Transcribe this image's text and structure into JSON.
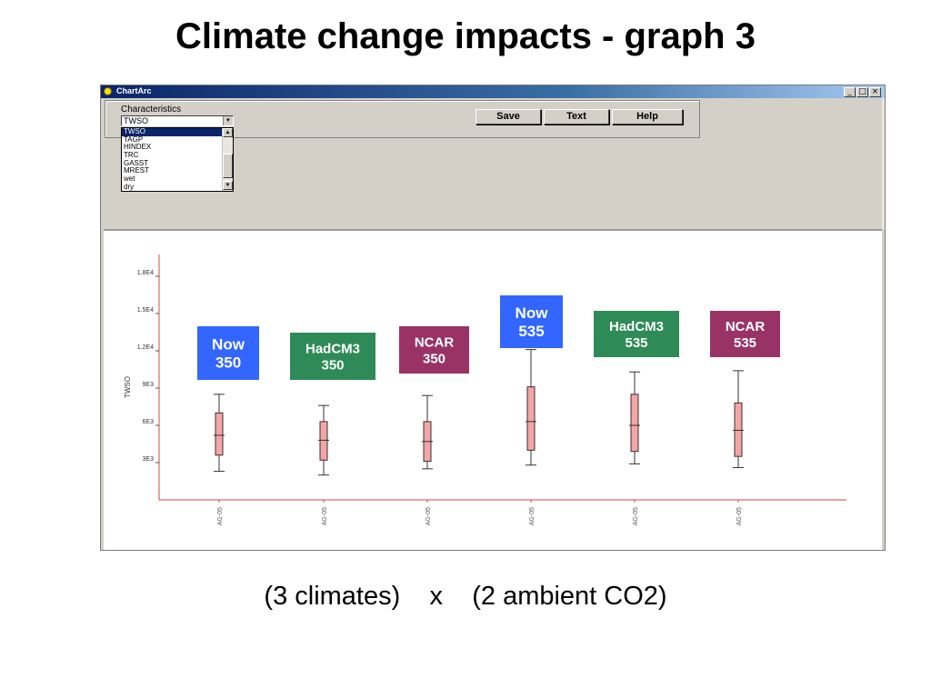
{
  "slide": {
    "title": "Climate change impacts - graph 3",
    "caption": "(3 climates)    x    (2 ambient CO2)"
  },
  "window": {
    "title": "ChartArc",
    "minimize": "_",
    "maximize": "□",
    "close": "×"
  },
  "controls": {
    "characteristics_label": "Characteristics",
    "selected_value": "TWSO",
    "options": [
      "TWSO",
      "TAGP",
      "HINDEX",
      "TRC",
      "GASST",
      "MREST",
      "wet",
      "dry"
    ],
    "save_label": "Save",
    "text_label": "Text",
    "help_label": "Help"
  },
  "chart_data": {
    "type": "box",
    "ylabel": "TWSO",
    "y_ticks": [
      "3E3",
      "6E3",
      "9E3",
      "1.2E4",
      "1.5E4",
      "1.8E4"
    ],
    "categories": [
      "AG-05",
      "AG-05",
      "AG-05",
      "AG-05",
      "AG-05",
      "AG-05"
    ],
    "boxes": [
      {
        "label": "Now\n350",
        "color": "#3366ff",
        "min": 2300,
        "q1": 3600,
        "median": 5200,
        "q3": 7000,
        "max": 8500
      },
      {
        "label": "HadCM3\n350",
        "color": "#2e8b57",
        "min": 2000,
        "q1": 3200,
        "median": 4800,
        "q3": 6300,
        "max": 7600
      },
      {
        "label": "NCAR\n350",
        "color": "#993366",
        "min": 2500,
        "q1": 3100,
        "median": 4700,
        "q3": 6300,
        "max": 8400
      },
      {
        "label": "Now\n535",
        "color": "#3366ff",
        "min": 2800,
        "q1": 4000,
        "median": 6300,
        "q3": 9100,
        "max": 12100
      },
      {
        "label": "HadCM3\n535",
        "color": "#2e8b57",
        "min": 2900,
        "q1": 3900,
        "median": 6000,
        "q3": 8500,
        "max": 10300
      },
      {
        "label": "NCAR\n535",
        "color": "#993366",
        "min": 2600,
        "q1": 3500,
        "median": 5600,
        "q3": 7800,
        "max": 10400
      }
    ],
    "box_fill": "#f4a6a6",
    "axis_color": "#e04040",
    "grid": false
  }
}
